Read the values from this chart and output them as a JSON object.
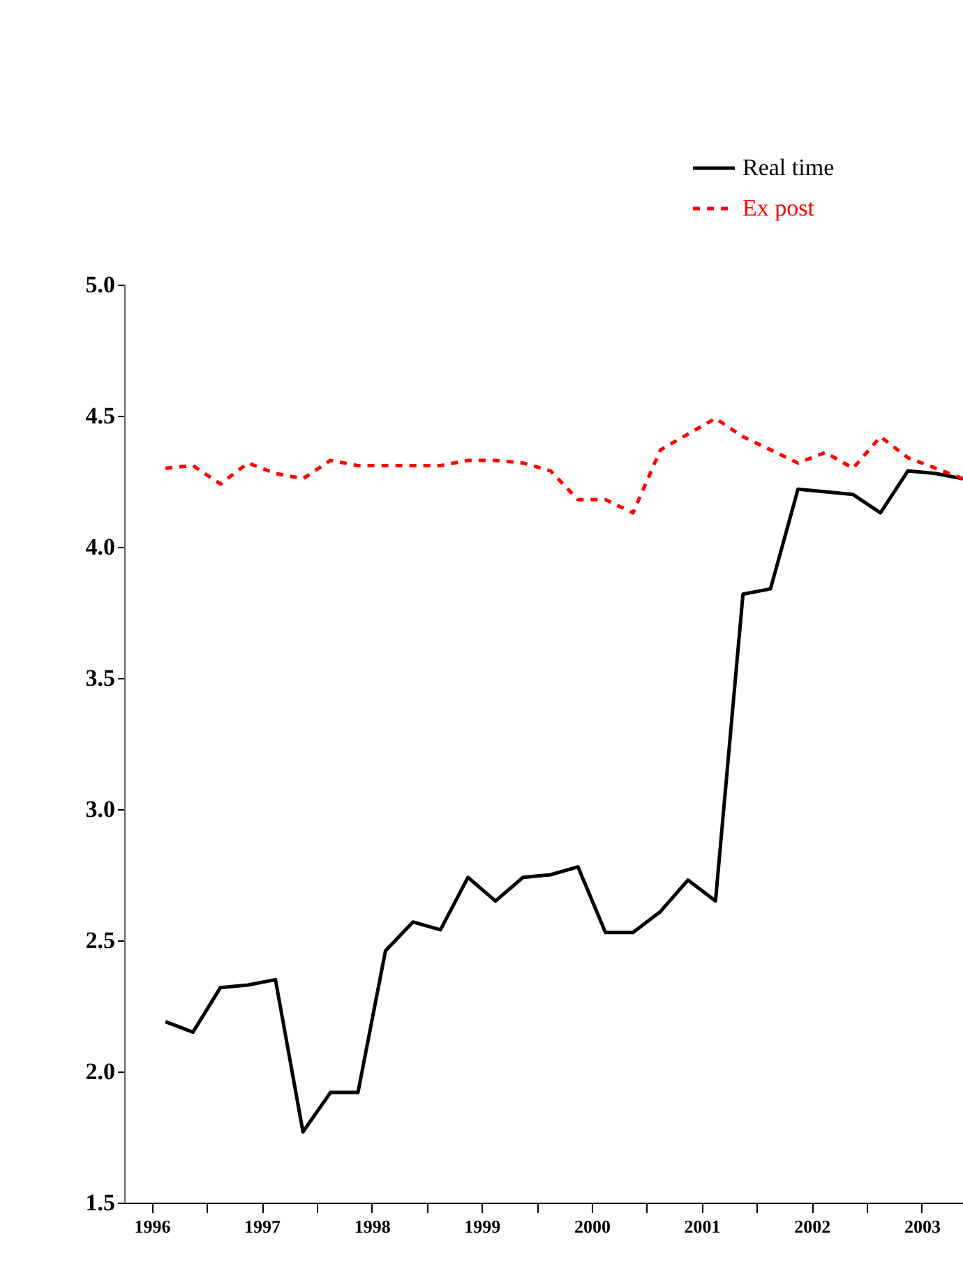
{
  "chart_data": {
    "type": "line",
    "x": [
      1996.625,
      1996.875,
      1997.125,
      1997.375,
      1997.625,
      1997.875,
      1998.125,
      1998.375,
      1998.625,
      1998.875,
      1999.125,
      1999.375,
      1999.625,
      1999.875,
      2000.125,
      2000.375,
      2000.625,
      2000.875,
      2001.125,
      2001.375,
      2001.625,
      2001.875,
      2002.125,
      2002.375,
      2002.625,
      2002.875,
      2003.125,
      2003.375,
      2003.625,
      2003.875
    ],
    "series": [
      {
        "name": "Real time",
        "color": "#000000",
        "line_style": "solid",
        "values": [
          2.19,
          2.15,
          2.32,
          2.33,
          2.35,
          1.77,
          1.92,
          1.92,
          2.46,
          2.57,
          2.54,
          2.74,
          2.65,
          2.74,
          2.75,
          2.78,
          2.53,
          2.53,
          2.61,
          2.73,
          2.65,
          3.82,
          3.84,
          4.22,
          4.21,
          4.2,
          4.13,
          4.29,
          4.28,
          4.26
        ]
      },
      {
        "name": "Ex post",
        "color": "#ff0000",
        "line_style": "dashed",
        "values": [
          4.3,
          4.31,
          4.24,
          4.32,
          4.28,
          4.26,
          4.33,
          4.31,
          4.31,
          4.31,
          4.31,
          4.33,
          4.33,
          4.32,
          4.29,
          4.18,
          4.18,
          4.13,
          4.37,
          4.43,
          4.49,
          4.42,
          4.37,
          4.32,
          4.36,
          4.3,
          4.42,
          4.34,
          4.3,
          4.26
        ]
      }
    ],
    "xlim": [
      1996.25,
      2003.875
    ],
    "xticks": [
      {
        "value": 1996.5,
        "label": "1996"
      },
      {
        "value": 1997,
        "label": null
      },
      {
        "value": 1997.5,
        "label": "1997"
      },
      {
        "value": 1998,
        "label": null
      },
      {
        "value": 1998.5,
        "label": "1998"
      },
      {
        "value": 1999,
        "label": null
      },
      {
        "value": 1999.5,
        "label": "1999"
      },
      {
        "value": 2000,
        "label": null
      },
      {
        "value": 2000.5,
        "label": "2000"
      },
      {
        "value": 2001,
        "label": null
      },
      {
        "value": 2001.5,
        "label": "2001"
      },
      {
        "value": 2002,
        "label": null
      },
      {
        "value": 2002.5,
        "label": "2002"
      },
      {
        "value": 2003,
        "label": null
      },
      {
        "value": 2003.5,
        "label": "2003"
      }
    ],
    "ylim": [
      1.5,
      5
    ],
    "yticks": [
      {
        "value": 1.5,
        "label": "1.5"
      },
      {
        "value": 2,
        "label": "2.0"
      },
      {
        "value": 2.5,
        "label": "2.5"
      },
      {
        "value": 3,
        "label": "3.0"
      },
      {
        "value": 3.5,
        "label": "3.5"
      },
      {
        "value": 4,
        "label": "4.0"
      },
      {
        "value": 4.5,
        "label": "4.5"
      },
      {
        "value": 5,
        "label": "5.0"
      }
    ],
    "legend": "top right",
    "grid": false
  }
}
